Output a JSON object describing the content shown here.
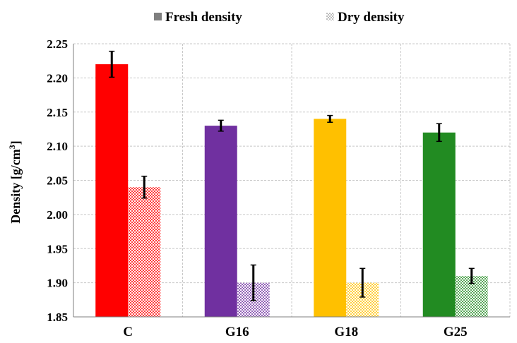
{
  "chart_data": {
    "type": "bar",
    "title": "",
    "xlabel": "",
    "ylabel": "Density [g/cm",
    "ylabel_sup": "3",
    "ylabel_close": "]",
    "ylim": [
      1.85,
      2.25
    ],
    "yticks": [
      "1.85",
      "1.90",
      "1.95",
      "2.00",
      "2.05",
      "2.10",
      "2.15",
      "2.20",
      "2.25"
    ],
    "grid": true,
    "legend_position": "top",
    "categories": [
      "C",
      "G16",
      "G18",
      "G25"
    ],
    "category_colors": [
      "#ff0000",
      "#7030a0",
      "#ffc000",
      "#228b22"
    ],
    "series": [
      {
        "name": "Fresh density",
        "pattern": "solid",
        "values": [
          2.22,
          2.13,
          2.14,
          2.12
        ],
        "errors": [
          0.019,
          0.008,
          0.005,
          0.013
        ]
      },
      {
        "name": "Dry density",
        "pattern": "dotted",
        "values": [
          2.04,
          1.9,
          1.9,
          1.91
        ],
        "errors": [
          0.016,
          0.026,
          0.021,
          0.011
        ]
      }
    ],
    "colors": {
      "fresh_legend": "#7f7f7f",
      "dry_legend": "#a6a6a6",
      "grid": "#c8c8c8",
      "error_bar": "#000000"
    }
  }
}
